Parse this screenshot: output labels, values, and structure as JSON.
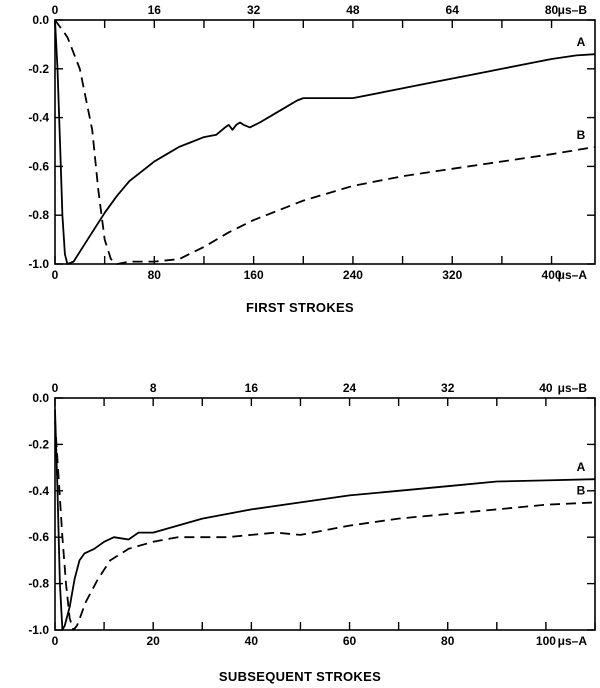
{
  "chart_data": [
    {
      "type": "line",
      "title": "FIRST STROKES",
      "xlabel": "μs–A",
      "x2label": "μs–B",
      "xlim": [
        0,
        435
      ],
      "x2lim": [
        0,
        87
      ],
      "ylim": [
        -1.0,
        0.0
      ],
      "x_ticks": [
        "0",
        "80",
        "160",
        "240",
        "320",
        "400"
      ],
      "x2_ticks": [
        "0",
        "16",
        "32",
        "48",
        "64",
        "80"
      ],
      "y_ticks": [
        "0.0",
        "-0.2",
        "-0.4",
        "-0.6",
        "-0.8",
        "-1.0"
      ],
      "grid": false,
      "series": [
        {
          "name": "A",
          "style": "solid",
          "axis": "bottom",
          "x": [
            0,
            2,
            4,
            6,
            8,
            10,
            15,
            20,
            30,
            40,
            50,
            60,
            70,
            80,
            90,
            100,
            110,
            120,
            130,
            137,
            140,
            143,
            146,
            149,
            152,
            157,
            165,
            175,
            185,
            195,
            200,
            210,
            240,
            270,
            300,
            330,
            350,
            360,
            380,
            400,
            420,
            435
          ],
          "y": [
            0.0,
            -0.2,
            -0.5,
            -0.8,
            -0.96,
            -1.0,
            -0.99,
            -0.95,
            -0.87,
            -0.79,
            -0.72,
            -0.66,
            -0.62,
            -0.58,
            -0.55,
            -0.52,
            -0.5,
            -0.48,
            -0.47,
            -0.44,
            -0.43,
            -0.45,
            -0.43,
            -0.42,
            -0.43,
            -0.44,
            -0.42,
            -0.39,
            -0.36,
            -0.33,
            -0.32,
            -0.32,
            -0.32,
            -0.29,
            -0.26,
            -0.23,
            -0.21,
            -0.2,
            -0.18,
            -0.16,
            -0.145,
            -0.14
          ]
        },
        {
          "name": "B",
          "style": "dashed",
          "axis": "top",
          "x": [
            0,
            2,
            4,
            6,
            7,
            8,
            9,
            10,
            12,
            16,
            20,
            24,
            28,
            32,
            40,
            48,
            56,
            64,
            72,
            80,
            87
          ],
          "y": [
            0.0,
            -0.07,
            -0.2,
            -0.45,
            -0.7,
            -0.9,
            -0.98,
            -1.0,
            -0.99,
            -0.99,
            -0.98,
            -0.93,
            -0.87,
            -0.82,
            -0.74,
            -0.68,
            -0.64,
            -0.61,
            -0.58,
            -0.55,
            -0.52
          ]
        }
      ],
      "annotations": [
        "A",
        "B"
      ]
    },
    {
      "type": "line",
      "title": "SUBSEQUENT STROKES",
      "xlabel": "μs–A",
      "x2label": "μs–B",
      "xlim": [
        0,
        110
      ],
      "x2lim": [
        0,
        44
      ],
      "ylim": [
        -1.0,
        0.0
      ],
      "x_ticks": [
        "0",
        "20",
        "40",
        "60",
        "80",
        "100"
      ],
      "x2_ticks": [
        "0",
        "8",
        "16",
        "24",
        "32",
        "40"
      ],
      "y_ticks": [
        "0.0",
        "-0.2",
        "-0.4",
        "-0.6",
        "-0.8",
        "-1.0"
      ],
      "grid": false,
      "series": [
        {
          "name": "A",
          "style": "solid",
          "axis": "bottom",
          "x": [
            0,
            0.5,
            1,
            1.5,
            2,
            3,
            4,
            5,
            6,
            8,
            10,
            12,
            15,
            17,
            20,
            25,
            30,
            40,
            50,
            60,
            70,
            80,
            90,
            100,
            110
          ],
          "y": [
            -0.05,
            -0.4,
            -0.8,
            -1.0,
            -0.98,
            -0.9,
            -0.78,
            -0.7,
            -0.67,
            -0.65,
            -0.62,
            -0.6,
            -0.61,
            -0.58,
            -0.58,
            -0.55,
            -0.52,
            -0.48,
            -0.45,
            -0.42,
            -0.4,
            -0.38,
            -0.36,
            -0.355,
            -0.35
          ]
        },
        {
          "name": "B",
          "style": "dashed",
          "axis": "top",
          "x": [
            0,
            0.3,
            0.6,
            0.9,
            1.2,
            1.5,
            1.8,
            2.5,
            3.5,
            4.5,
            6,
            8,
            10,
            12,
            14,
            16,
            18,
            20,
            24,
            28,
            32,
            36,
            40,
            44
          ],
          "y": [
            -0.1,
            -0.35,
            -0.6,
            -0.8,
            -0.95,
            -1.0,
            -0.98,
            -0.88,
            -0.78,
            -0.7,
            -0.65,
            -0.62,
            -0.6,
            -0.6,
            -0.6,
            -0.59,
            -0.58,
            -0.59,
            -0.55,
            -0.52,
            -0.5,
            -0.48,
            -0.46,
            -0.45
          ]
        }
      ],
      "annotations": [
        "A",
        "B"
      ]
    }
  ]
}
